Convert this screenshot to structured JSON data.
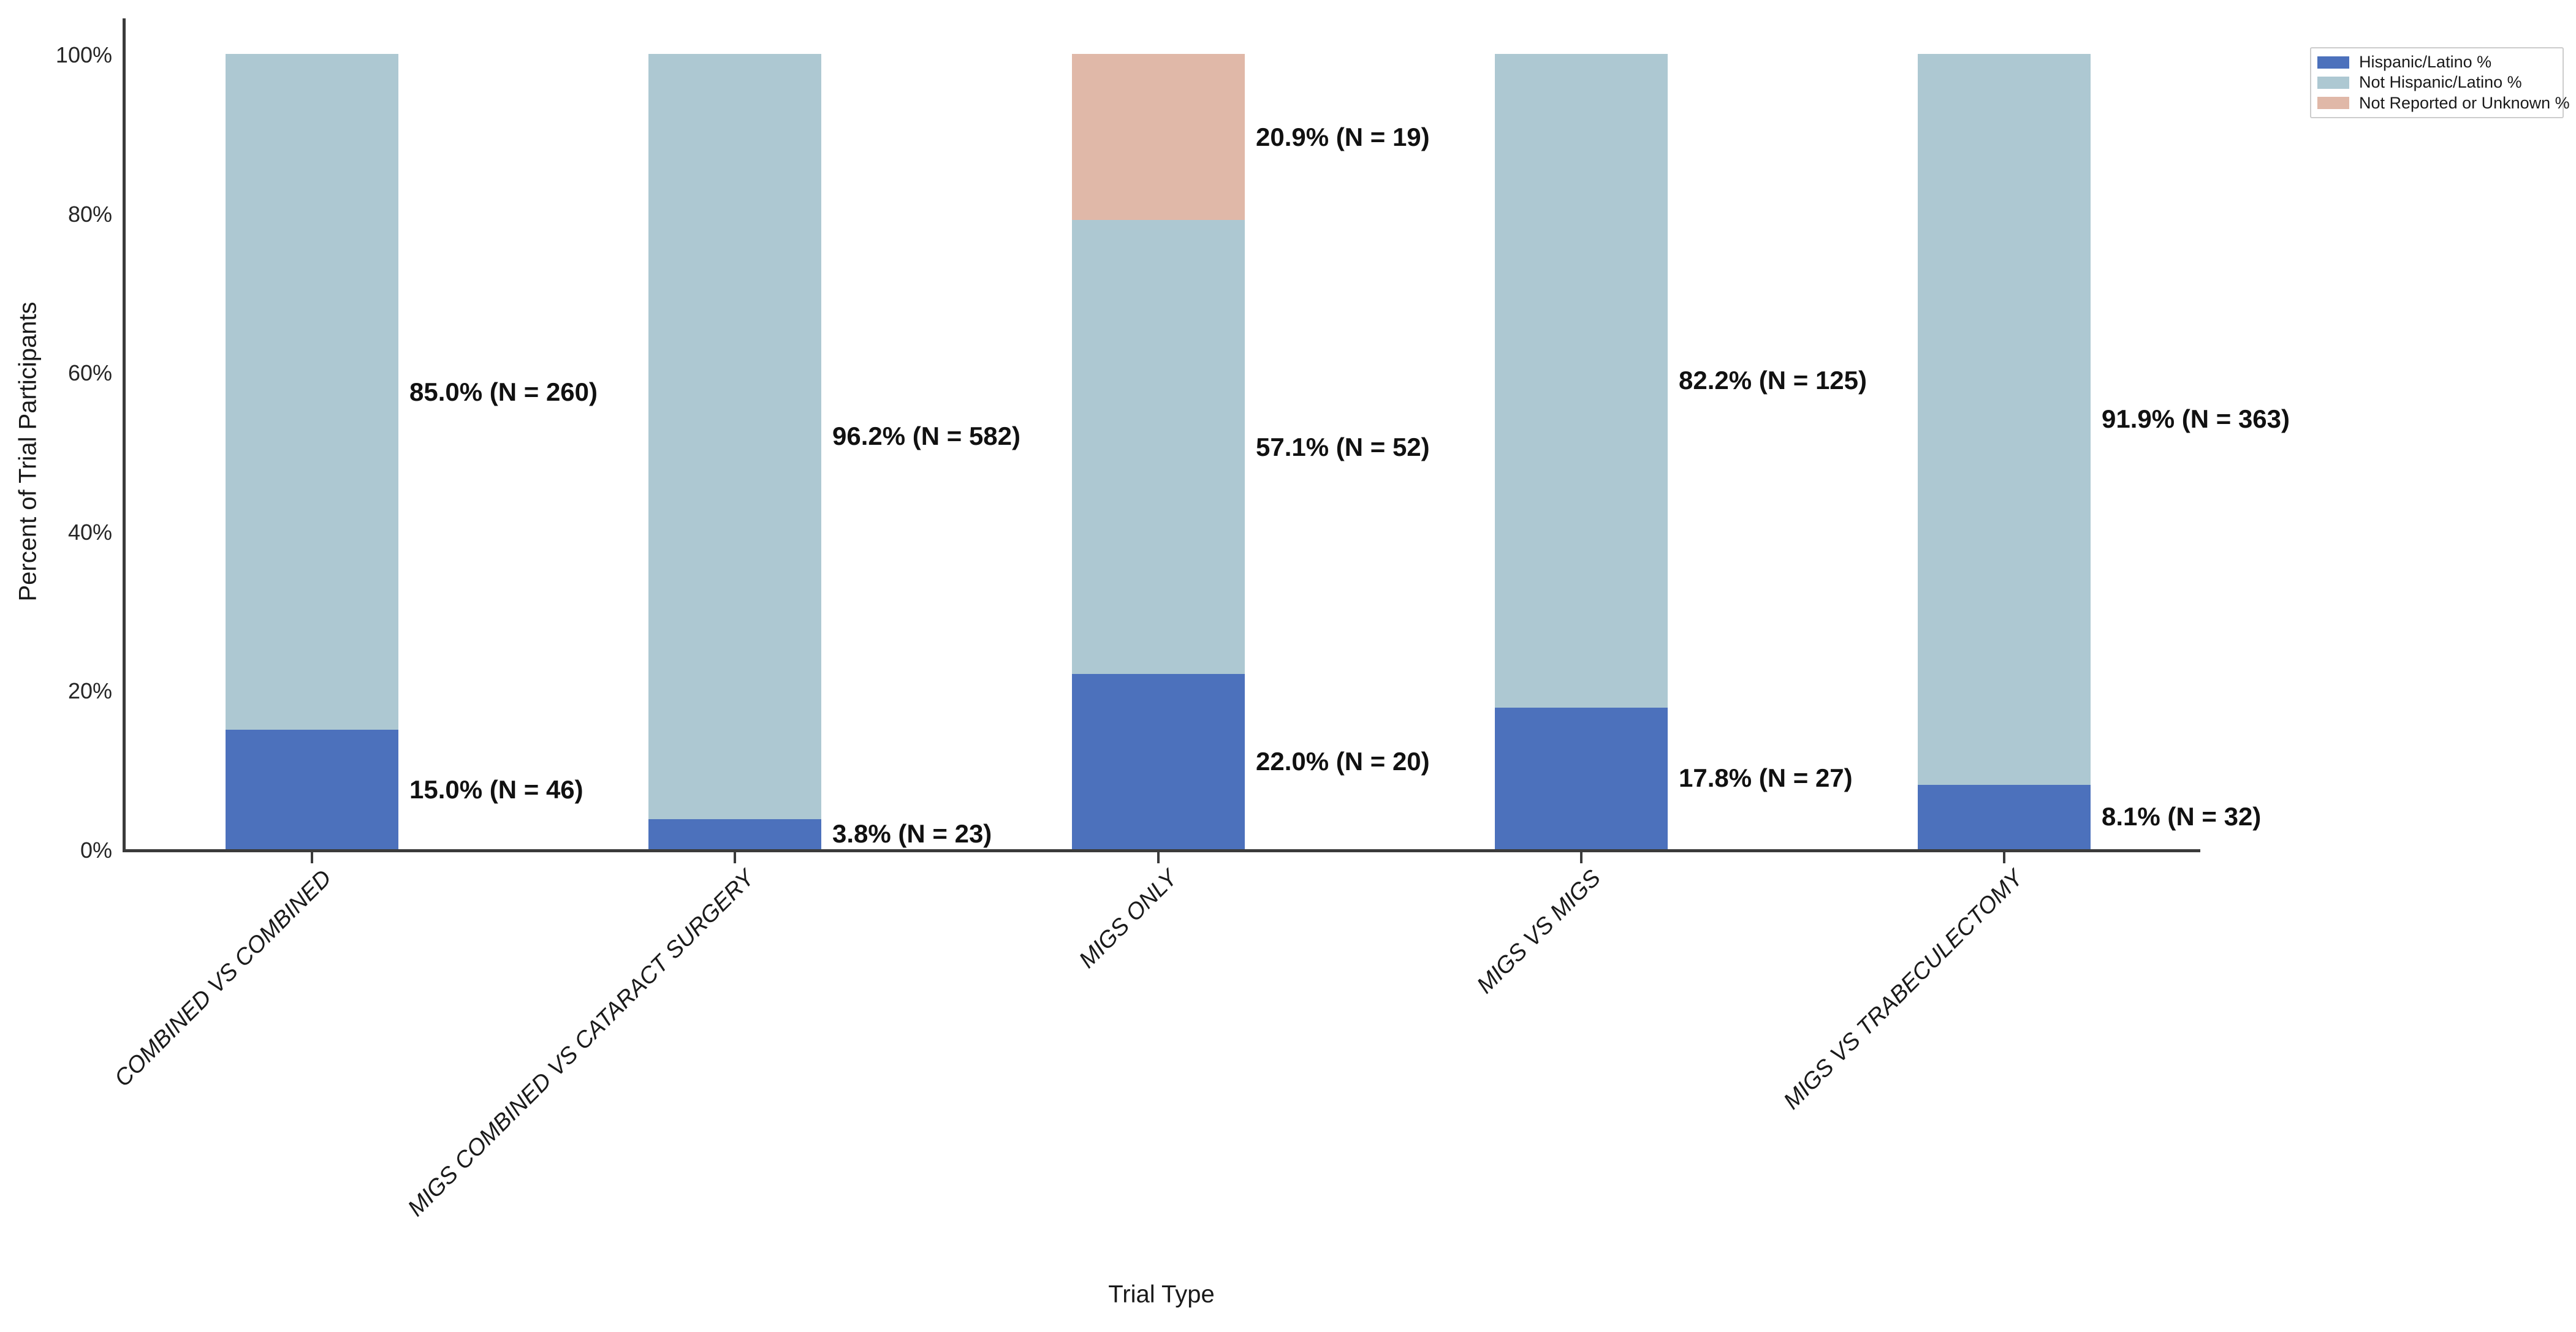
{
  "figure": {
    "background": "#ffffff"
  },
  "chart_data": {
    "type": "bar",
    "stacked": true,
    "orientation": "vertical",
    "title": "",
    "xlabel": "Trial Type",
    "ylabel": "Percent of Trial Participants",
    "ylim": [
      0,
      100
    ],
    "grid": false,
    "ytick_values": [
      0,
      20,
      40,
      60,
      80,
      100
    ],
    "ytick_labels": [
      "0%",
      "20%",
      "40%",
      "60%",
      "80%",
      "100%"
    ],
    "categories": [
      "COMBINED VS COMBINED",
      "MIGS COMBINED VS CATARACT SURGERY",
      "MIGS ONLY",
      "MIGS VS MIGS",
      "MIGS VS TRABECULECTOMY"
    ],
    "series_order": [
      "Hispanic/Latino %",
      "Not Hispanic/Latino %",
      "Not Reported or Unknown %"
    ],
    "series_colors": {
      "Hispanic/Latino %": "#4c71bc",
      "Not Hispanic/Latino %": "#adc8d2",
      "Not Reported or Unknown %": "#e0b8a8"
    },
    "bars": [
      {
        "category": "COMBINED VS COMBINED",
        "segments": [
          {
            "series": "Hispanic/Latino %",
            "percent": 15.0,
            "n": 46,
            "label": "15.0% (N = 46)"
          },
          {
            "series": "Not Hispanic/Latino %",
            "percent": 85.0,
            "n": 260,
            "label": "85.0% (N = 260)"
          }
        ]
      },
      {
        "category": "MIGS COMBINED VS CATARACT SURGERY",
        "segments": [
          {
            "series": "Hispanic/Latino %",
            "percent": 3.8,
            "n": 23,
            "label": "3.8% (N = 23)"
          },
          {
            "series": "Not Hispanic/Latino %",
            "percent": 96.2,
            "n": 582,
            "label": "96.2% (N = 582)"
          }
        ]
      },
      {
        "category": "MIGS ONLY",
        "segments": [
          {
            "series": "Hispanic/Latino %",
            "percent": 22.0,
            "n": 20,
            "label": "22.0% (N = 20)"
          },
          {
            "series": "Not Hispanic/Latino %",
            "percent": 57.1,
            "n": 52,
            "label": "57.1% (N = 52)"
          },
          {
            "series": "Not Reported or Unknown %",
            "percent": 20.9,
            "n": 19,
            "label": "20.9% (N = 19)"
          }
        ]
      },
      {
        "category": "MIGS VS MIGS",
        "segments": [
          {
            "series": "Hispanic/Latino %",
            "percent": 17.8,
            "n": 27,
            "label": "17.8% (N = 27)"
          },
          {
            "series": "Not Hispanic/Latino %",
            "percent": 82.2,
            "n": 125,
            "label": "82.2% (N = 125)"
          }
        ]
      },
      {
        "category": "MIGS VS TRABECULECTOMY",
        "segments": [
          {
            "series": "Hispanic/Latino %",
            "percent": 8.1,
            "n": 32,
            "label": "8.1% (N = 32)"
          },
          {
            "series": "Not Hispanic/Latino %",
            "percent": 91.9,
            "n": 363,
            "label": "91.9% (N = 363)"
          }
        ]
      }
    ],
    "legend": {
      "position": "upper right",
      "entries": [
        "Hispanic/Latino %",
        "Not Hispanic/Latino %",
        "Not Reported or Unknown %"
      ]
    }
  },
  "colors": {
    "axis": "#3b3b3b",
    "tick_text": "#262626",
    "label_text": "#111111",
    "legend_border": "#cccccc"
  }
}
